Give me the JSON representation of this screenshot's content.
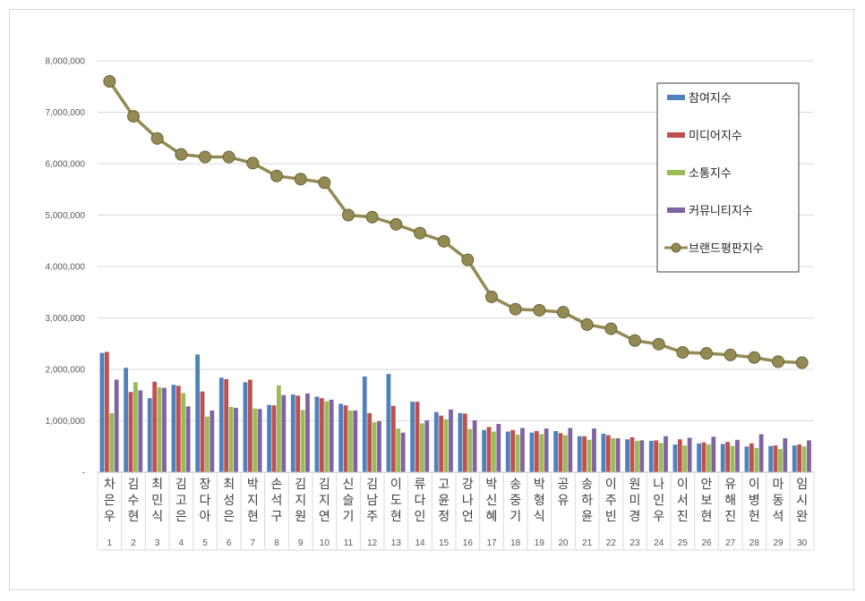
{
  "chart_data": {
    "type": "bar",
    "title": "",
    "xlabel": "",
    "ylabel": "",
    "ylim": [
      0,
      8000000
    ],
    "y_ticks": [
      "-",
      "1,000,000",
      "2,000,000",
      "3,000,000",
      "4,000,000",
      "5,000,000",
      "6,000,000",
      "7,000,000",
      "8,000,000"
    ],
    "grid": true,
    "legend_position": "top-right",
    "categories": [
      "차은우",
      "김수현",
      "최민식",
      "김고은",
      "장다아",
      "최성은",
      "박지현",
      "손석구",
      "김지원",
      "김지연",
      "신슬기",
      "김남주",
      "이도현",
      "류다인",
      "고윤정",
      "강나언",
      "박신혜",
      "송중기",
      "박형식",
      "공유",
      "송하윤",
      "이주빈",
      "원미경",
      "나인우",
      "이서진",
      "안보현",
      "유해진",
      "이병헌",
      "마동석",
      "임시완"
    ],
    "ranks": [
      "1",
      "2",
      "3",
      "4",
      "5",
      "6",
      "7",
      "8",
      "9",
      "10",
      "11",
      "12",
      "13",
      "14",
      "15",
      "16",
      "17",
      "18",
      "19",
      "20",
      "21",
      "22",
      "23",
      "24",
      "25",
      "26",
      "27",
      "28",
      "29",
      "30"
    ],
    "series": [
      {
        "name": "참여지수",
        "type": "bar",
        "color": "#4f81bd",
        "values": [
          2320000,
          2030000,
          1440000,
          1700000,
          2290000,
          1840000,
          1750000,
          1310000,
          1510000,
          1470000,
          1330000,
          1860000,
          1910000,
          1370000,
          1170000,
          1150000,
          820000,
          790000,
          770000,
          800000,
          700000,
          750000,
          640000,
          610000,
          540000,
          560000,
          550000,
          500000,
          510000,
          520000
        ]
      },
      {
        "name": "미디어지수",
        "type": "bar",
        "color": "#c0504d",
        "values": [
          2340000,
          1560000,
          1760000,
          1680000,
          1570000,
          1810000,
          1800000,
          1300000,
          1490000,
          1440000,
          1300000,
          1150000,
          1290000,
          1370000,
          1100000,
          1140000,
          880000,
          820000,
          800000,
          760000,
          700000,
          720000,
          680000,
          620000,
          640000,
          580000,
          590000,
          560000,
          520000,
          540000
        ]
      },
      {
        "name": "소통지수",
        "type": "bar",
        "color": "#9bbb59",
        "values": [
          1150000,
          1750000,
          1650000,
          1540000,
          1080000,
          1270000,
          1240000,
          1690000,
          1210000,
          1380000,
          1200000,
          970000,
          850000,
          950000,
          1030000,
          840000,
          790000,
          730000,
          740000,
          720000,
          630000,
          660000,
          610000,
          570000,
          520000,
          540000,
          510000,
          470000,
          450000,
          500000
        ]
      },
      {
        "name": "커뮤니티지수",
        "type": "bar",
        "color": "#8064a2",
        "values": [
          1800000,
          1590000,
          1640000,
          1280000,
          1200000,
          1250000,
          1230000,
          1500000,
          1530000,
          1410000,
          1200000,
          990000,
          770000,
          1010000,
          1220000,
          1010000,
          940000,
          860000,
          850000,
          860000,
          850000,
          660000,
          620000,
          700000,
          670000,
          690000,
          630000,
          740000,
          660000,
          620000
        ]
      },
      {
        "name": "브랜드평판지수",
        "type": "line",
        "color": "#948a54",
        "values": [
          7600000,
          6920000,
          6490000,
          6180000,
          6130000,
          6130000,
          6010000,
          5760000,
          5700000,
          5630000,
          5000000,
          4960000,
          4820000,
          4650000,
          4490000,
          4130000,
          3410000,
          3170000,
          3150000,
          3110000,
          2870000,
          2790000,
          2560000,
          2490000,
          2330000,
          2310000,
          2280000,
          2230000,
          2150000,
          2130000
        ]
      }
    ]
  }
}
